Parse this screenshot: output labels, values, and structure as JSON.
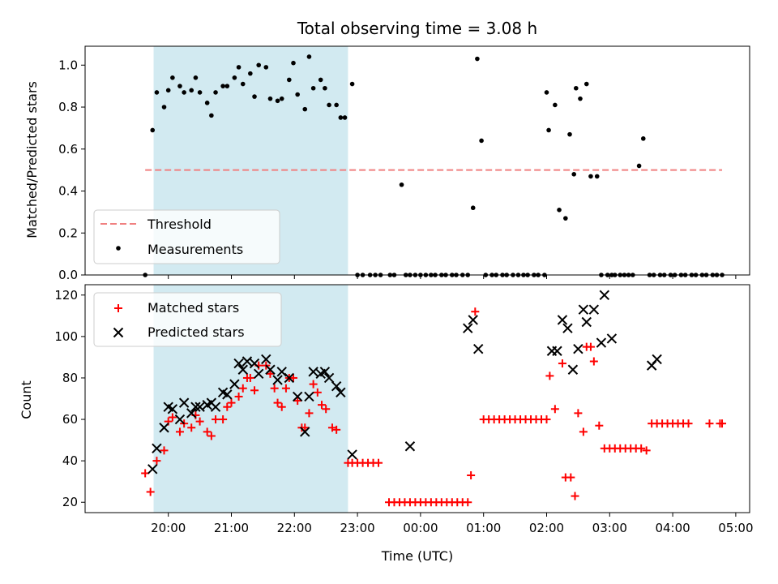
{
  "chart_data": [
    {
      "type": "scatter",
      "title": "Total observing time = 3.08 h",
      "xlabel": "",
      "ylabel": "Matched/Predicted stars",
      "ylim": [
        0,
        1.09
      ],
      "yticks": [
        "0.0",
        "0.2",
        "0.4",
        "0.6",
        "0.8",
        "1.0"
      ],
      "xlim_hours_utc_from_19": [
        -0.32,
        10.22
      ],
      "shaded_interval": {
        "start": "19:46",
        "end": "22:51",
        "color": "#add8e6"
      },
      "legend": {
        "position": "lower-left",
        "entries": [
          "Threshold",
          "Measurements"
        ]
      },
      "threshold": {
        "name": "Threshold",
        "value": 0.5,
        "x_start": "19:38",
        "x_end": "04:47",
        "color": "#f08080"
      },
      "series": [
        {
          "name": "Measurements",
          "color": "#000000",
          "x": [
            "19:38",
            "19:45",
            "19:49",
            "19:56",
            "20:00",
            "20:04",
            "20:11",
            "20:15",
            "20:22",
            "20:26",
            "20:30",
            "20:37",
            "20:41",
            "20:45",
            "20:52",
            "20:56",
            "21:03",
            "21:07",
            "21:11",
            "21:18",
            "21:22",
            "21:26",
            "21:33",
            "21:37",
            "21:44",
            "21:48",
            "21:55",
            "21:59",
            "22:03",
            "22:10",
            "22:14",
            "22:18",
            "22:25",
            "22:29",
            "22:33",
            "22:40",
            "22:44",
            "22:48",
            "22:55",
            "23:00",
            "23:05",
            "23:12",
            "23:17",
            "23:22",
            "23:31",
            "23:35",
            "23:42",
            "23:46",
            "23:50",
            "23:55",
            "00:00",
            "00:05",
            "00:10",
            "00:14",
            "00:20",
            "00:24",
            "00:30",
            "00:34",
            "00:40",
            "00:45",
            "00:50",
            "00:54",
            "00:58",
            "01:02",
            "01:08",
            "01:12",
            "01:18",
            "01:22",
            "01:28",
            "01:33",
            "01:38",
            "01:42",
            "01:48",
            "01:52",
            "01:58",
            "02:00",
            "02:02",
            "02:08",
            "02:12",
            "02:18",
            "02:22",
            "02:26",
            "02:28",
            "02:32",
            "02:38",
            "02:42",
            "02:48",
            "02:52",
            "02:58",
            "03:02",
            "03:05",
            "03:10",
            "03:14",
            "03:18",
            "03:22",
            "03:28",
            "03:32",
            "03:38",
            "03:42",
            "03:48",
            "03:52",
            "03:58",
            "04:02",
            "04:08",
            "04:12",
            "04:18",
            "04:22",
            "04:28",
            "04:32",
            "04:38",
            "04:42",
            "04:47"
          ],
          "y": [
            0.0,
            0.69,
            0.87,
            0.8,
            0.88,
            0.94,
            0.9,
            0.87,
            0.88,
            0.94,
            0.87,
            0.82,
            0.76,
            0.87,
            0.9,
            0.9,
            0.94,
            0.99,
            0.91,
            0.96,
            0.85,
            1.0,
            0.99,
            0.84,
            0.83,
            0.84,
            0.93,
            1.01,
            0.86,
            0.79,
            1.04,
            0.89,
            0.93,
            0.89,
            0.81,
            0.81,
            0.75,
            0.75,
            0.91,
            0.0,
            0.0,
            0.0,
            0.0,
            0.0,
            0.0,
            0.0,
            0.43,
            0.0,
            0.0,
            0.0,
            0.0,
            0.0,
            0.0,
            0.0,
            0.0,
            0.0,
            0.0,
            0.0,
            0.0,
            0.0,
            0.32,
            1.03,
            0.64,
            0.0,
            0.0,
            0.0,
            0.0,
            0.0,
            0.0,
            0.0,
            0.0,
            0.0,
            0.0,
            0.0,
            0.0,
            0.87,
            0.69,
            0.81,
            0.31,
            0.27,
            0.67,
            0.48,
            0.89,
            0.84,
            0.91,
            0.47,
            0.47,
            0.0,
            0.0,
            0.0,
            0.0,
            0.0,
            0.0,
            0.0,
            0.0,
            0.52,
            0.65,
            0.0,
            0.0,
            0.0,
            0.0,
            0.0,
            0.0,
            0.0,
            0.0,
            0.0,
            0.0,
            0.0,
            0.0,
            0.0,
            0.0,
            0.0
          ]
        }
      ]
    },
    {
      "type": "scatter",
      "title": "",
      "xlabel": "Time (UTC)",
      "ylabel": "Count",
      "ylim": [
        15,
        125
      ],
      "yticks": [
        "20",
        "40",
        "60",
        "80",
        "100",
        "120"
      ],
      "xticks": [
        "20:00",
        "21:00",
        "22:00",
        "23:00",
        "00:00",
        "01:00",
        "02:00",
        "03:00",
        "04:00",
        "05:00"
      ],
      "legend": {
        "position": "upper-left",
        "entries": [
          "Matched stars",
          "Predicted stars"
        ]
      },
      "series": [
        {
          "name": "Matched stars",
          "marker": "plus",
          "color": "#ff0000",
          "points": [
            [
              "19:38",
              34
            ],
            [
              "19:43",
              25
            ],
            [
              "19:49",
              40
            ],
            [
              "19:56",
              45
            ],
            [
              "20:00",
              59
            ],
            [
              "20:04",
              61
            ],
            [
              "20:11",
              54
            ],
            [
              "20:15",
              58
            ],
            [
              "20:22",
              56
            ],
            [
              "20:26",
              62
            ],
            [
              "20:30",
              59
            ],
            [
              "20:37",
              54
            ],
            [
              "20:41",
              52
            ],
            [
              "20:45",
              60
            ],
            [
              "20:52",
              60
            ],
            [
              "20:56",
              66
            ],
            [
              "21:00",
              68
            ],
            [
              "21:07",
              71
            ],
            [
              "21:11",
              75
            ],
            [
              "21:15",
              80
            ],
            [
              "21:18",
              80
            ],
            [
              "21:22",
              74
            ],
            [
              "21:26",
              86
            ],
            [
              "21:33",
              86
            ],
            [
              "21:37",
              82
            ],
            [
              "21:41",
              75
            ],
            [
              "21:44",
              68
            ],
            [
              "21:48",
              66
            ],
            [
              "21:52",
              75
            ],
            [
              "21:55",
              80
            ],
            [
              "21:59",
              80
            ],
            [
              "22:03",
              69
            ],
            [
              "22:07",
              56
            ],
            [
              "22:10",
              56
            ],
            [
              "22:14",
              63
            ],
            [
              "22:18",
              77
            ],
            [
              "22:22",
              73
            ],
            [
              "22:26",
              67
            ],
            [
              "22:30",
              65
            ],
            [
              "22:36",
              56
            ],
            [
              "22:40",
              55
            ],
            [
              "22:51",
              39
            ],
            [
              "22:55",
              39
            ],
            [
              "23:00",
              39
            ],
            [
              "23:05",
              39
            ],
            [
              "23:10",
              39
            ],
            [
              "23:15",
              39
            ],
            [
              "23:20",
              39
            ],
            [
              "23:30",
              20
            ],
            [
              "23:35",
              20
            ],
            [
              "23:40",
              20
            ],
            [
              "23:45",
              20
            ],
            [
              "23:50",
              20
            ],
            [
              "23:55",
              20
            ],
            [
              "00:00",
              20
            ],
            [
              "00:05",
              20
            ],
            [
              "00:10",
              20
            ],
            [
              "00:15",
              20
            ],
            [
              "00:20",
              20
            ],
            [
              "00:25",
              20
            ],
            [
              "00:30",
              20
            ],
            [
              "00:35",
              20
            ],
            [
              "00:40",
              20
            ],
            [
              "00:45",
              20
            ],
            [
              "00:48",
              33
            ],
            [
              "00:52",
              112
            ],
            [
              "01:00",
              60
            ],
            [
              "01:05",
              60
            ],
            [
              "01:10",
              60
            ],
            [
              "01:15",
              60
            ],
            [
              "01:20",
              60
            ],
            [
              "01:25",
              60
            ],
            [
              "01:30",
              60
            ],
            [
              "01:35",
              60
            ],
            [
              "01:40",
              60
            ],
            [
              "01:45",
              60
            ],
            [
              "01:50",
              60
            ],
            [
              "01:55",
              60
            ],
            [
              "02:00",
              60
            ],
            [
              "02:03",
              81
            ],
            [
              "02:08",
              65
            ],
            [
              "02:15",
              87
            ],
            [
              "02:18",
              32
            ],
            [
              "02:23",
              32
            ],
            [
              "02:27",
              23
            ],
            [
              "02:30",
              63
            ],
            [
              "02:35",
              54
            ],
            [
              "02:38",
              95
            ],
            [
              "02:42",
              95
            ],
            [
              "02:45",
              88
            ],
            [
              "02:50",
              57
            ],
            [
              "02:55",
              46
            ],
            [
              "03:00",
              46
            ],
            [
              "03:05",
              46
            ],
            [
              "03:10",
              46
            ],
            [
              "03:15",
              46
            ],
            [
              "03:20",
              46
            ],
            [
              "03:25",
              46
            ],
            [
              "03:30",
              46
            ],
            [
              "03:35",
              45
            ],
            [
              "03:40",
              58
            ],
            [
              "03:45",
              58
            ],
            [
              "03:50",
              58
            ],
            [
              "03:55",
              58
            ],
            [
              "04:00",
              58
            ],
            [
              "04:05",
              58
            ],
            [
              "04:10",
              58
            ],
            [
              "04:15",
              58
            ],
            [
              "04:35",
              58
            ],
            [
              "04:45",
              58
            ],
            [
              "04:47",
              58
            ]
          ]
        },
        {
          "name": "Predicted stars",
          "marker": "x",
          "color": "#000000",
          "points": [
            [
              "19:45",
              36
            ],
            [
              "19:49",
              46
            ],
            [
              "19:56",
              56
            ],
            [
              "20:00",
              66
            ],
            [
              "20:04",
              65
            ],
            [
              "20:11",
              60
            ],
            [
              "20:15",
              68
            ],
            [
              "20:22",
              63
            ],
            [
              "20:26",
              66
            ],
            [
              "20:30",
              66
            ],
            [
              "20:37",
              67
            ],
            [
              "20:41",
              68
            ],
            [
              "20:45",
              66
            ],
            [
              "20:52",
              73
            ],
            [
              "20:56",
              72
            ],
            [
              "21:03",
              77
            ],
            [
              "21:07",
              87
            ],
            [
              "21:11",
              84
            ],
            [
              "21:15",
              88
            ],
            [
              "21:22",
              87
            ],
            [
              "21:26",
              82
            ],
            [
              "21:33",
              89
            ],
            [
              "21:37",
              84
            ],
            [
              "21:44",
              79
            ],
            [
              "21:48",
              83
            ],
            [
              "21:55",
              80
            ],
            [
              "22:03",
              71
            ],
            [
              "22:10",
              54
            ],
            [
              "22:14",
              71
            ],
            [
              "22:18",
              83
            ],
            [
              "22:25",
              82
            ],
            [
              "22:29",
              83
            ],
            [
              "22:33",
              80
            ],
            [
              "22:40",
              76
            ],
            [
              "22:44",
              73
            ],
            [
              "22:55",
              43
            ],
            [
              "23:50",
              47
            ],
            [
              "00:45",
              104
            ],
            [
              "00:50",
              108
            ],
            [
              "00:55",
              94
            ],
            [
              "02:05",
              93
            ],
            [
              "02:10",
              93
            ],
            [
              "02:15",
              108
            ],
            [
              "02:20",
              104
            ],
            [
              "02:25",
              84
            ],
            [
              "02:30",
              94
            ],
            [
              "02:35",
              113
            ],
            [
              "02:38",
              107
            ],
            [
              "02:45",
              113
            ],
            [
              "02:52",
              97
            ],
            [
              "02:55",
              120
            ],
            [
              "03:02",
              99
            ],
            [
              "03:40",
              86
            ],
            [
              "03:45",
              89
            ]
          ]
        }
      ]
    }
  ]
}
